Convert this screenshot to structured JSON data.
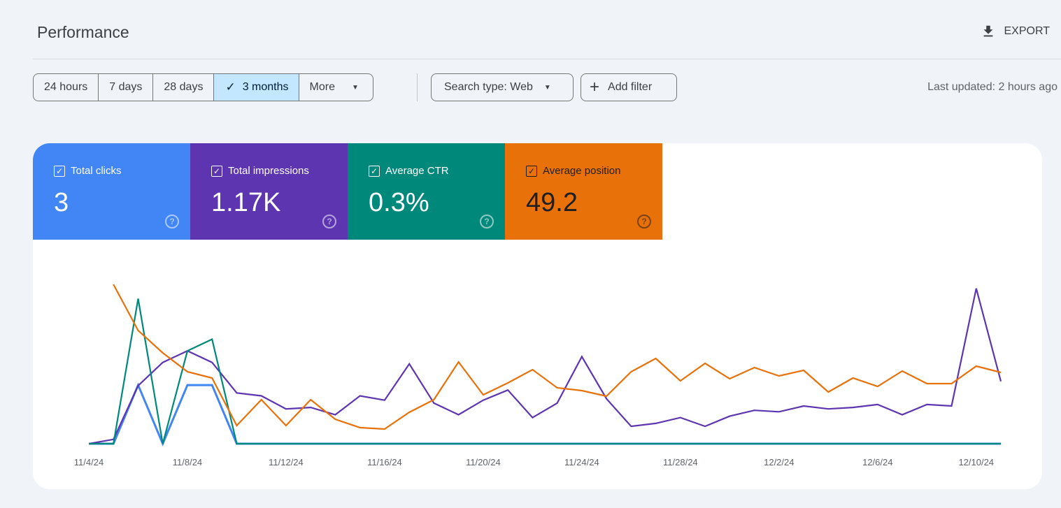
{
  "header": {
    "title": "Performance",
    "export_label": "EXPORT",
    "export_icon": "download-icon"
  },
  "date_range": {
    "options": [
      "24 hours",
      "7 days",
      "28 days",
      "3 months",
      "More"
    ],
    "selected": "3 months"
  },
  "filters": {
    "search_type": "Search type: Web",
    "add_filter": "Add filter"
  },
  "last_updated": "Last updated: 2 hours ago",
  "metrics": [
    {
      "label": "Total clicks",
      "value": "3",
      "color": "#4285f4",
      "text_color": "#ffffff",
      "checked": true
    },
    {
      "label": "Total impressions",
      "value": "1.17K",
      "color": "#5e35b1",
      "text_color": "#ffffff",
      "checked": true
    },
    {
      "label": "Average CTR",
      "value": "0.3%",
      "color": "#00897b",
      "text_color": "#ffffff",
      "checked": true
    },
    {
      "label": "Average position",
      "value": "49.2",
      "color": "#e8710a",
      "text_color": "#1f1f1f",
      "checked": true
    }
  ],
  "chart_data": {
    "type": "line",
    "x": [
      "11/4",
      "11/5",
      "11/6",
      "11/7",
      "11/8",
      "11/9",
      "11/10",
      "11/11",
      "11/12",
      "11/13",
      "11/14",
      "11/15",
      "11/16",
      "11/17",
      "11/18",
      "11/19",
      "11/20",
      "11/21",
      "11/22",
      "11/23",
      "11/24",
      "11/25",
      "11/26",
      "11/27",
      "11/28",
      "11/29",
      "11/30",
      "12/1",
      "12/2",
      "12/3",
      "12/4",
      "12/5",
      "12/6",
      "12/7",
      "12/8",
      "12/9",
      "12/10",
      "12/11"
    ],
    "x_ticks": [
      "11/4/24",
      "11/8/24",
      "11/12/24",
      "11/16/24",
      "11/20/24",
      "11/24/24",
      "11/28/24",
      "12/2/24",
      "12/6/24",
      "12/10/24"
    ],
    "grid": false,
    "series": [
      {
        "name": "Total clicks",
        "color": "#4285f4",
        "range": [
          0,
          2.92
        ],
        "values": [
          0,
          0,
          1,
          0,
          1,
          1,
          0,
          0,
          0,
          0,
          0,
          0,
          0,
          0,
          0,
          0,
          0,
          0,
          0,
          0,
          0,
          0,
          0,
          0,
          0,
          0,
          0,
          0,
          0,
          0,
          0,
          0,
          0,
          0,
          0,
          0,
          0,
          0
        ]
      },
      {
        "name": "Total impressions",
        "color": "#5e35b1",
        "range": [
          0,
          118
        ],
        "values": [
          0,
          3,
          40,
          56,
          64,
          56,
          35,
          33,
          24,
          25,
          20,
          33,
          30,
          55,
          28,
          20,
          30,
          37,
          18,
          28,
          60,
          31,
          12,
          14,
          18,
          12,
          19,
          23,
          22,
          26,
          24,
          25,
          27,
          20,
          27,
          26,
          107,
          43
        ]
      },
      {
        "name": "Average CTR",
        "color": "#00897b",
        "range": [
          0,
          2.95
        ],
        "values": [
          0,
          0,
          2.5,
          0,
          1.6,
          1.8,
          0,
          0,
          0,
          0,
          0,
          0,
          0,
          0,
          0,
          0,
          0,
          0,
          0,
          0,
          0,
          0,
          0,
          0,
          0,
          0,
          0,
          0,
          0,
          0,
          0,
          0,
          0,
          0,
          0,
          0,
          0,
          0
        ]
      },
      {
        "name": "Average position",
        "color": "#e8710a",
        "range": [
          1.5,
          75
        ],
        "inverted": true,
        "values": [
          null,
          6.6,
          26.4,
          36,
          44.1,
          46.8,
          67.2,
          56.1,
          67.2,
          56.1,
          64.5,
          68.1,
          68.7,
          61.5,
          56.1,
          39.9,
          54,
          48.9,
          43.2,
          51,
          52.2,
          54.6,
          44.1,
          38.4,
          48,
          40.5,
          47.1,
          42.3,
          45.9,
          43.5,
          52.8,
          46.8,
          50.4,
          43.8,
          49.2,
          49.2,
          41.7,
          44.4
        ]
      }
    ]
  }
}
